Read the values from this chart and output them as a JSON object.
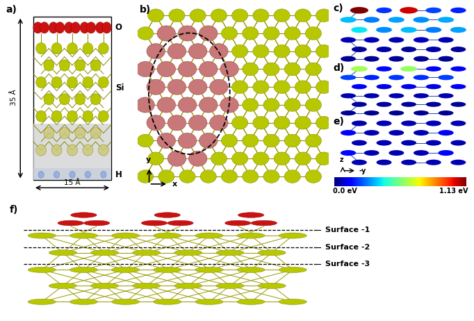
{
  "panel_labels": [
    "a)",
    "b)",
    "c)",
    "d)",
    "e)",
    "f)"
  ],
  "panel_label_fontsize": 10,
  "panel_label_fontweight": "bold",
  "label_O": "O",
  "label_Si": "Si",
  "label_H": "H",
  "dim_35A": "35 Å",
  "dim_15A": "15 Å",
  "colorbar_min": "0.0 eV",
  "colorbar_max": "1.13 eV",
  "surface_labels": [
    "Surface -1",
    "Surface -2",
    "Surface -3"
  ],
  "color_Si": "#b8c800",
  "color_Si_green": "#a0c000",
  "color_O_red": "#cc1111",
  "color_O_pink": "#c87878",
  "color_H": "#88aadd",
  "color_bond": "#888800",
  "color_bond_blue": "#2244aa",
  "bg_color": "#ffffff",
  "gray_bg": "#e0e0e0"
}
